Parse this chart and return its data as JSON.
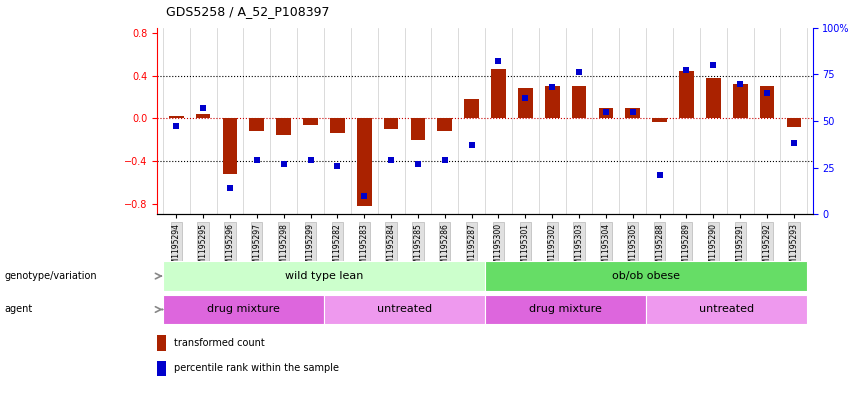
{
  "title": "GDS5258 / A_52_P108397",
  "samples": [
    "GSM1195294",
    "GSM1195295",
    "GSM1195296",
    "GSM1195297",
    "GSM1195298",
    "GSM1195299",
    "GSM1195282",
    "GSM1195283",
    "GSM1195284",
    "GSM1195285",
    "GSM1195286",
    "GSM1195287",
    "GSM1195300",
    "GSM1195301",
    "GSM1195302",
    "GSM1195303",
    "GSM1195304",
    "GSM1195305",
    "GSM1195288",
    "GSM1195289",
    "GSM1195290",
    "GSM1195291",
    "GSM1195292",
    "GSM1195293"
  ],
  "bar_values": [
    0.02,
    0.04,
    -0.52,
    -0.12,
    -0.16,
    -0.06,
    -0.14,
    -0.82,
    -0.1,
    -0.2,
    -0.12,
    0.18,
    0.46,
    0.28,
    0.3,
    0.3,
    0.1,
    0.1,
    -0.04,
    0.44,
    0.38,
    0.32,
    0.3,
    -0.08
  ],
  "scatter_values": [
    47,
    57,
    14,
    29,
    27,
    29,
    26,
    10,
    29,
    27,
    29,
    37,
    82,
    62,
    68,
    76,
    55,
    55,
    21,
    77,
    80,
    70,
    65,
    38
  ],
  "bar_color": "#aa2200",
  "scatter_color": "#0000cc",
  "ylim_left": [
    -0.9,
    0.85
  ],
  "ylim_right": [
    0,
    100
  ],
  "yticks_left": [
    -0.8,
    -0.4,
    0.0,
    0.4,
    0.8
  ],
  "yticks_right": [
    0,
    25,
    50,
    75,
    100
  ],
  "wt_color": "#ccffcc",
  "ob_color": "#66dd66",
  "drug_color": "#dd66dd",
  "untreated_color": "#ee99ee",
  "legend_items": [
    "transformed count",
    "percentile rank within the sample"
  ],
  "legend_colors": [
    "#aa2200",
    "#0000cc"
  ]
}
